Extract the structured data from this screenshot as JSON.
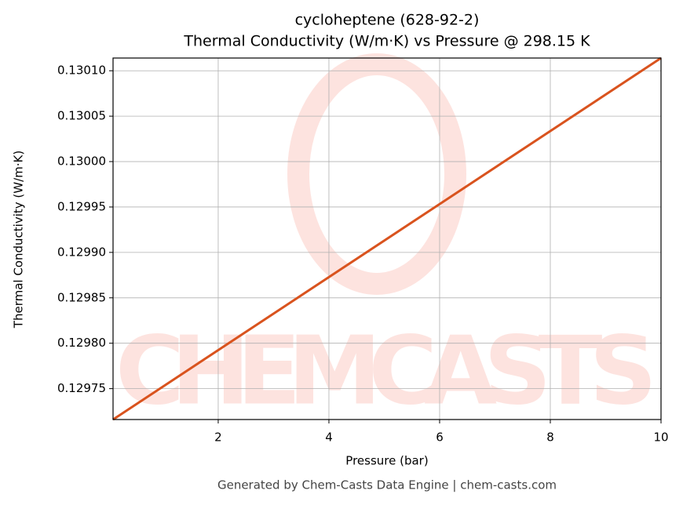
{
  "chart_data": {
    "type": "line",
    "title": "cycloheptene (628-92-2)",
    "subtitle": "Thermal Conductivity (W/m·K) vs Pressure @ 298.15 K",
    "x_label": "Pressure (bar)",
    "y_label": "Thermal Conductivity (W/m·K)",
    "footer": "Generated by Chem-Casts Data Engine | chem-casts.com",
    "watermark": "CHEMCASTS",
    "x": [
      0.1,
      10
    ],
    "series": [
      {
        "name": "Thermal Conductivity",
        "color": "#d9531e",
        "values": [
          0.129716,
          0.130114
        ]
      }
    ],
    "xlim": [
      0.1,
      10
    ],
    "ylim": [
      0.129716,
      0.130114
    ],
    "xticks": [
      2,
      4,
      6,
      8,
      10
    ],
    "yticks": [
      {
        "value": 0.12975,
        "label": "0.12975"
      },
      {
        "value": 0.1298,
        "label": "0.12980"
      },
      {
        "value": 0.12985,
        "label": "0.12985"
      },
      {
        "value": 0.1299,
        "label": "0.12990"
      },
      {
        "value": 0.12995,
        "label": "0.12995"
      },
      {
        "value": 0.13,
        "label": "0.13000"
      },
      {
        "value": 0.13005,
        "label": "0.13005"
      },
      {
        "value": 0.1301,
        "label": "0.13010"
      }
    ],
    "grid": true
  }
}
